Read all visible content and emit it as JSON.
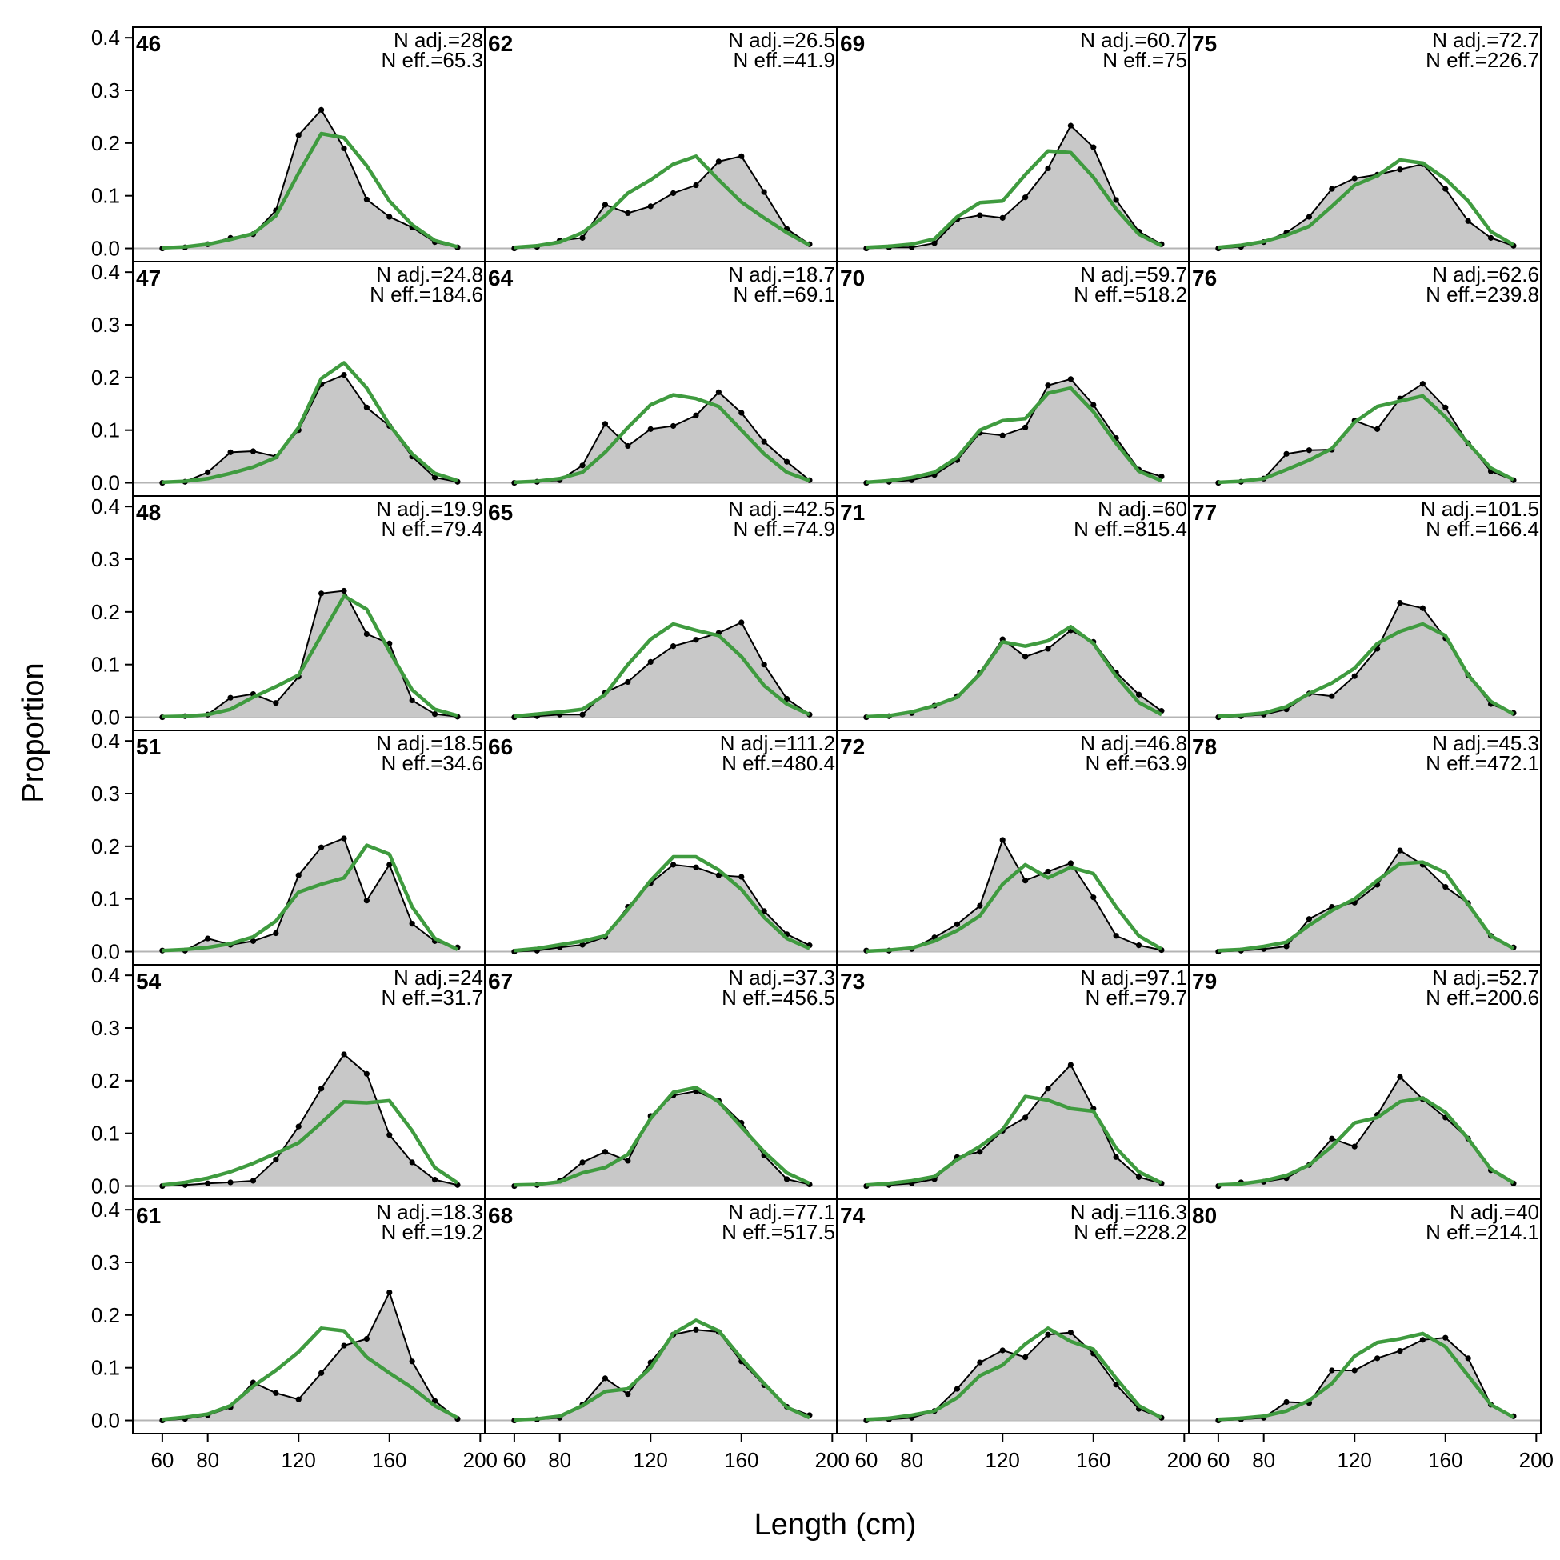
{
  "colors": {
    "observed_fill": "#c8c8c8",
    "observed_line": "#000000",
    "expected_line": "#3f9b3f",
    "baseline": "#b4b4b4",
    "frame": "#000000"
  },
  "chart_data": {
    "type": "area",
    "layout": {
      "rows": 6,
      "cols": 4,
      "order": "column-major"
    },
    "xlabel": "Length (cm)",
    "ylabel": "Proportion",
    "xlim": [
      47,
      202
    ],
    "ylim": [
      -0.025,
      0.42
    ],
    "x_ticks": [
      60,
      80,
      120,
      160,
      200
    ],
    "y_ticks": [
      0.0,
      0.1,
      0.2,
      0.3,
      0.4
    ],
    "y_tick_labels": [
      "0.0",
      "0.1",
      "0.2",
      "0.3",
      "0.4"
    ],
    "x": [
      60,
      70,
      80,
      90,
      100,
      110,
      120,
      130,
      140,
      150,
      160,
      170,
      180,
      190
    ],
    "series_names": [
      "observed",
      "expected"
    ],
    "panels": [
      {
        "id": "46",
        "n_adj": "N adj.=28",
        "n_eff": "N eff.=65.3",
        "observed": [
          0.0,
          0.002,
          0.008,
          0.02,
          0.027,
          0.072,
          0.215,
          0.263,
          0.19,
          0.093,
          0.06,
          0.04,
          0.012,
          0.002
        ],
        "expected": [
          0.001,
          0.003,
          0.008,
          0.017,
          0.028,
          0.062,
          0.143,
          0.218,
          0.21,
          0.157,
          0.09,
          0.045,
          0.015,
          0.003
        ]
      },
      {
        "id": "47",
        "n_adj": "N adj.=24.8",
        "n_eff": "N eff.=184.6",
        "observed": [
          0.0,
          0.002,
          0.02,
          0.058,
          0.06,
          0.05,
          0.1,
          0.187,
          0.205,
          0.143,
          0.108,
          0.05,
          0.01,
          0.002
        ],
        "expected": [
          0.001,
          0.003,
          0.008,
          0.018,
          0.03,
          0.048,
          0.105,
          0.198,
          0.228,
          0.18,
          0.11,
          0.055,
          0.018,
          0.004
        ]
      },
      {
        "id": "48",
        "n_adj": "N adj.=19.9",
        "n_eff": "N eff.=79.4",
        "observed": [
          0.0,
          0.002,
          0.005,
          0.037,
          0.044,
          0.027,
          0.077,
          0.235,
          0.24,
          0.158,
          0.14,
          0.032,
          0.006,
          0.001
        ],
        "expected": [
          0.001,
          0.002,
          0.005,
          0.015,
          0.038,
          0.058,
          0.08,
          0.155,
          0.23,
          0.205,
          0.125,
          0.052,
          0.015,
          0.003
        ]
      },
      {
        "id": "51",
        "n_adj": "N adj.=18.5",
        "n_eff": "N eff.=34.6",
        "observed": [
          0.002,
          0.002,
          0.025,
          0.013,
          0.02,
          0.035,
          0.145,
          0.198,
          0.215,
          0.097,
          0.165,
          0.053,
          0.02,
          0.008
        ],
        "expected": [
          0.002,
          0.004,
          0.008,
          0.015,
          0.028,
          0.058,
          0.113,
          0.128,
          0.14,
          0.202,
          0.185,
          0.085,
          0.025,
          0.004
        ]
      },
      {
        "id": "54",
        "n_adj": "N adj.=24",
        "n_eff": "N eff.=31.7",
        "observed": [
          0.0,
          0.002,
          0.005,
          0.007,
          0.01,
          0.05,
          0.113,
          0.185,
          0.25,
          0.213,
          0.097,
          0.045,
          0.012,
          0.002
        ],
        "expected": [
          0.002,
          0.007,
          0.015,
          0.027,
          0.043,
          0.062,
          0.082,
          0.12,
          0.16,
          0.158,
          0.162,
          0.105,
          0.035,
          0.006
        ]
      },
      {
        "id": "61",
        "n_adj": "N adj.=18.3",
        "n_eff": "N eff.=19.2",
        "observed": [
          0.0,
          0.003,
          0.01,
          0.025,
          0.072,
          0.052,
          0.04,
          0.09,
          0.142,
          0.155,
          0.243,
          0.112,
          0.037,
          0.003
        ],
        "expected": [
          0.002,
          0.006,
          0.012,
          0.028,
          0.065,
          0.095,
          0.13,
          0.175,
          0.17,
          0.12,
          0.09,
          0.062,
          0.028,
          0.005
        ]
      },
      {
        "id": "62",
        "n_adj": "N adj.=26.5",
        "n_eff": "N eff.=41.9",
        "observed": [
          0.0,
          0.003,
          0.015,
          0.02,
          0.083,
          0.067,
          0.08,
          0.105,
          0.12,
          0.165,
          0.175,
          0.107,
          0.037,
          0.008
        ],
        "expected": [
          0.002,
          0.005,
          0.012,
          0.03,
          0.062,
          0.105,
          0.13,
          0.16,
          0.175,
          0.13,
          0.088,
          0.058,
          0.03,
          0.006
        ]
      },
      {
        "id": "64",
        "n_adj": "N adj.=18.7",
        "n_eff": "N eff.=69.1",
        "observed": [
          0.0,
          0.002,
          0.005,
          0.033,
          0.112,
          0.07,
          0.102,
          0.108,
          0.128,
          0.172,
          0.133,
          0.078,
          0.04,
          0.005
        ],
        "expected": [
          0.001,
          0.003,
          0.008,
          0.02,
          0.058,
          0.105,
          0.148,
          0.167,
          0.16,
          0.145,
          0.1,
          0.055,
          0.02,
          0.004
        ]
      },
      {
        "id": "65",
        "n_adj": "N adj.=42.5",
        "n_eff": "N eff.=74.9",
        "observed": [
          0.0,
          0.002,
          0.005,
          0.005,
          0.047,
          0.067,
          0.105,
          0.135,
          0.147,
          0.16,
          0.18,
          0.1,
          0.035,
          0.005
        ],
        "expected": [
          0.002,
          0.006,
          0.01,
          0.015,
          0.043,
          0.1,
          0.148,
          0.177,
          0.165,
          0.155,
          0.115,
          0.06,
          0.025,
          0.005
        ]
      },
      {
        "id": "66",
        "n_adj": "N adj.=111.2",
        "n_eff": "N eff.=480.4",
        "observed": [
          0.0,
          0.002,
          0.008,
          0.013,
          0.028,
          0.085,
          0.13,
          0.165,
          0.16,
          0.145,
          0.142,
          0.077,
          0.033,
          0.012
        ],
        "expected": [
          0.002,
          0.006,
          0.013,
          0.02,
          0.03,
          0.08,
          0.135,
          0.18,
          0.18,
          0.155,
          0.118,
          0.065,
          0.025,
          0.006
        ]
      },
      {
        "id": "67",
        "n_adj": "N adj.=37.3",
        "n_eff": "N eff.=456.5",
        "observed": [
          0.0,
          0.002,
          0.01,
          0.045,
          0.065,
          0.048,
          0.133,
          0.172,
          0.18,
          0.162,
          0.12,
          0.058,
          0.013,
          0.003
        ],
        "expected": [
          0.002,
          0.003,
          0.008,
          0.025,
          0.035,
          0.06,
          0.128,
          0.178,
          0.187,
          0.16,
          0.112,
          0.065,
          0.025,
          0.005
        ]
      },
      {
        "id": "68",
        "n_adj": "N adj.=77.1",
        "n_eff": "N eff.=517.5",
        "observed": [
          0.0,
          0.002,
          0.005,
          0.03,
          0.08,
          0.05,
          0.11,
          0.163,
          0.172,
          0.168,
          0.112,
          0.067,
          0.026,
          0.01
        ],
        "expected": [
          0.001,
          0.003,
          0.008,
          0.028,
          0.055,
          0.06,
          0.1,
          0.165,
          0.19,
          0.17,
          0.118,
          0.07,
          0.025,
          0.005
        ]
      },
      {
        "id": "69",
        "n_adj": "N adj.=60.7",
        "n_eff": "N eff.=75",
        "observed": [
          0.0,
          0.002,
          0.002,
          0.01,
          0.055,
          0.063,
          0.058,
          0.097,
          0.152,
          0.233,
          0.192,
          0.092,
          0.032,
          0.008
        ],
        "expected": [
          0.002,
          0.004,
          0.008,
          0.018,
          0.06,
          0.087,
          0.09,
          0.14,
          0.185,
          0.182,
          0.135,
          0.075,
          0.027,
          0.005
        ]
      },
      {
        "id": "70",
        "n_adj": "N adj.=59.7",
        "n_eff": "N eff.=518.2",
        "observed": [
          0.0,
          0.002,
          0.005,
          0.015,
          0.043,
          0.095,
          0.09,
          0.105,
          0.185,
          0.197,
          0.148,
          0.085,
          0.025,
          0.012
        ],
        "expected": [
          0.001,
          0.004,
          0.01,
          0.02,
          0.048,
          0.1,
          0.118,
          0.122,
          0.17,
          0.18,
          0.135,
          0.075,
          0.022,
          0.004
        ]
      },
      {
        "id": "71",
        "n_adj": "N adj.=60",
        "n_eff": "N eff.=815.4",
        "observed": [
          0.0,
          0.002,
          0.008,
          0.022,
          0.04,
          0.085,
          0.148,
          0.115,
          0.13,
          0.165,
          0.143,
          0.085,
          0.043,
          0.012
        ],
        "expected": [
          0.001,
          0.003,
          0.01,
          0.022,
          0.038,
          0.082,
          0.143,
          0.135,
          0.145,
          0.172,
          0.14,
          0.078,
          0.028,
          0.005
        ]
      },
      {
        "id": "72",
        "n_adj": "N adj.=46.8",
        "n_eff": "N eff.=63.9",
        "observed": [
          0.002,
          0.002,
          0.005,
          0.027,
          0.052,
          0.087,
          0.212,
          0.135,
          0.152,
          0.168,
          0.103,
          0.03,
          0.012,
          0.003
        ],
        "expected": [
          0.001,
          0.003,
          0.007,
          0.02,
          0.04,
          0.068,
          0.128,
          0.165,
          0.14,
          0.16,
          0.148,
          0.085,
          0.03,
          0.005
        ]
      },
      {
        "id": "73",
        "n_adj": "N adj.=97.1",
        "n_eff": "N eff.=79.7",
        "observed": [
          0.0,
          0.002,
          0.005,
          0.013,
          0.055,
          0.065,
          0.105,
          0.13,
          0.185,
          0.23,
          0.147,
          0.055,
          0.017,
          0.005
        ],
        "expected": [
          0.002,
          0.005,
          0.01,
          0.018,
          0.05,
          0.075,
          0.107,
          0.17,
          0.163,
          0.147,
          0.142,
          0.072,
          0.027,
          0.006
        ]
      },
      {
        "id": "74",
        "n_adj": "N adj.=116.3",
        "n_eff": "N eff.=228.2",
        "observed": [
          0.0,
          0.002,
          0.005,
          0.018,
          0.06,
          0.11,
          0.133,
          0.12,
          0.163,
          0.167,
          0.127,
          0.068,
          0.022,
          0.005
        ],
        "expected": [
          0.002,
          0.004,
          0.01,
          0.018,
          0.043,
          0.085,
          0.105,
          0.145,
          0.175,
          0.15,
          0.135,
          0.08,
          0.028,
          0.005
        ]
      },
      {
        "id": "75",
        "n_adj": "N adj.=72.7",
        "n_eff": "N eff.=226.7",
        "observed": [
          0.0,
          0.003,
          0.012,
          0.03,
          0.06,
          0.113,
          0.133,
          0.14,
          0.15,
          0.16,
          0.113,
          0.052,
          0.02,
          0.005
        ],
        "expected": [
          0.002,
          0.006,
          0.013,
          0.025,
          0.042,
          0.08,
          0.12,
          0.138,
          0.168,
          0.162,
          0.132,
          0.09,
          0.032,
          0.007
        ]
      },
      {
        "id": "76",
        "n_adj": "N adj.=62.6",
        "n_eff": "N eff.=239.8",
        "observed": [
          0.0,
          0.002,
          0.008,
          0.055,
          0.062,
          0.063,
          0.118,
          0.102,
          0.16,
          0.188,
          0.143,
          0.075,
          0.022,
          0.005
        ],
        "expected": [
          0.001,
          0.003,
          0.008,
          0.025,
          0.043,
          0.065,
          0.115,
          0.145,
          0.155,
          0.165,
          0.125,
          0.075,
          0.028,
          0.006
        ]
      },
      {
        "id": "77",
        "n_adj": "N adj.=101.5",
        "n_eff": "N eff.=166.4",
        "observed": [
          0.0,
          0.002,
          0.005,
          0.015,
          0.045,
          0.04,
          0.078,
          0.13,
          0.217,
          0.207,
          0.15,
          0.08,
          0.025,
          0.008
        ],
        "expected": [
          0.002,
          0.004,
          0.008,
          0.02,
          0.045,
          0.065,
          0.093,
          0.14,
          0.163,
          0.177,
          0.155,
          0.08,
          0.03,
          0.006
        ]
      },
      {
        "id": "78",
        "n_adj": "N adj.=45.3",
        "n_eff": "N eff.=472.1",
        "observed": [
          0.0,
          0.002,
          0.005,
          0.01,
          0.062,
          0.085,
          0.093,
          0.127,
          0.192,
          0.165,
          0.123,
          0.092,
          0.03,
          0.008
        ],
        "expected": [
          0.002,
          0.004,
          0.01,
          0.018,
          0.05,
          0.078,
          0.1,
          0.135,
          0.167,
          0.17,
          0.15,
          0.09,
          0.03,
          0.006
        ]
      },
      {
        "id": "79",
        "n_adj": "N adj.=52.7",
        "n_eff": "N eff.=200.6",
        "observed": [
          0.0,
          0.007,
          0.008,
          0.015,
          0.04,
          0.09,
          0.075,
          0.135,
          0.207,
          0.165,
          0.13,
          0.09,
          0.03,
          0.005
        ],
        "expected": [
          0.002,
          0.004,
          0.01,
          0.02,
          0.04,
          0.075,
          0.12,
          0.13,
          0.16,
          0.167,
          0.14,
          0.09,
          0.032,
          0.006
        ]
      },
      {
        "id": "80",
        "n_adj": "N adj.=40",
        "n_eff": "N eff.=214.1",
        "observed": [
          0.0,
          0.002,
          0.005,
          0.035,
          0.033,
          0.095,
          0.095,
          0.118,
          0.132,
          0.153,
          0.157,
          0.118,
          0.03,
          0.008
        ],
        "expected": [
          0.002,
          0.004,
          0.008,
          0.018,
          0.038,
          0.07,
          0.122,
          0.148,
          0.155,
          0.165,
          0.14,
          0.085,
          0.03,
          0.006
        ]
      }
    ]
  }
}
